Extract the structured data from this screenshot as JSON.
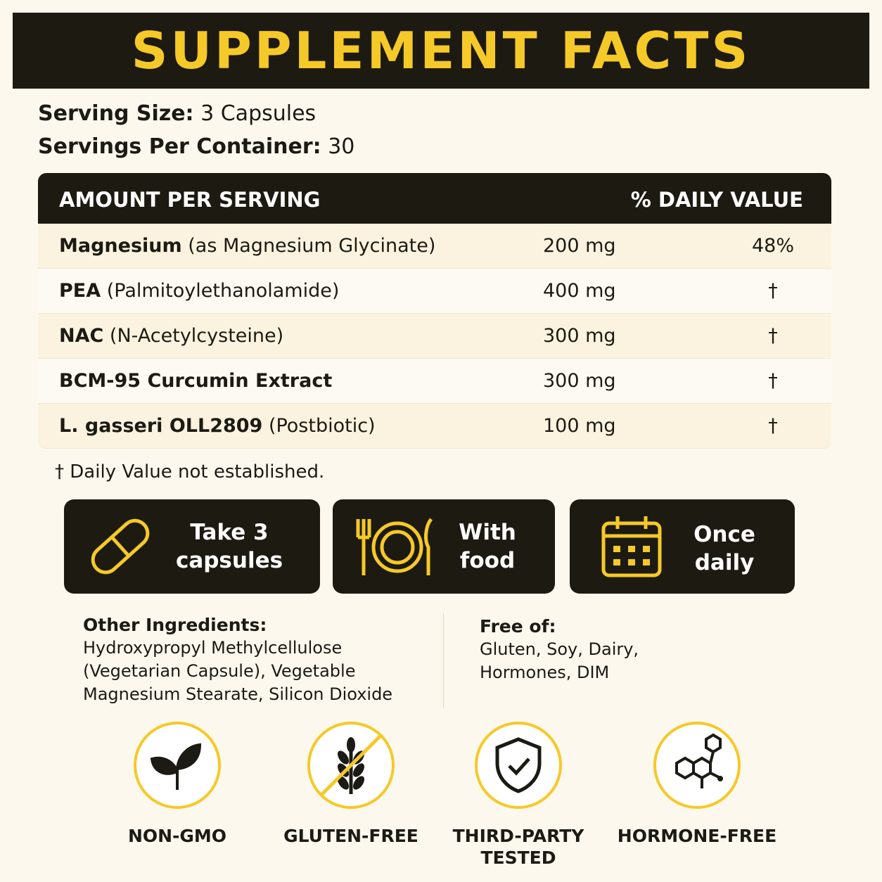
{
  "header": {
    "title": "SUPPLEMENT FACTS"
  },
  "serving": [
    {
      "label": "Serving Size:",
      "value": "3 Capsules"
    },
    {
      "label": "Servings Per Container:",
      "value": "30"
    }
  ],
  "table": {
    "headers": [
      "AMOUNT PER SERVING",
      "% DAILY VALUE"
    ],
    "rows": [
      {
        "name": "Magnesium",
        "note": "(as Magnesium Glycinate)",
        "amount": "200 mg",
        "dv": "48%"
      },
      {
        "name": "PEA",
        "note": "(Palmitoylethanolamide)",
        "amount": "400 mg",
        "dv": "†"
      },
      {
        "name": "NAC",
        "note": "(N-Acetylcysteine)",
        "amount": "300 mg",
        "dv": "†"
      },
      {
        "name": "BCM-95 Curcumin Extract",
        "amount": "300 mg",
        "dv": "†"
      },
      {
        "name": "L. gasseri OLL2809",
        "note": "(Postbiotic)",
        "amount": "100 mg",
        "dv": "†"
      }
    ]
  },
  "footnote": "† Daily Value not established.",
  "directions": [
    {
      "lines": [
        "Take 3",
        "capsules"
      ]
    },
    {
      "lines": [
        "With",
        "food"
      ]
    },
    {
      "lines": [
        "Once",
        "daily"
      ]
    }
  ],
  "other_ingredients": {
    "title": "Other Ingredients:",
    "lines": [
      "Hydroxypropyl Methylcellulose",
      "(Vegetarian Capsule), Vegetable",
      "Magnesium Stearate, Silicon Dioxide"
    ]
  },
  "free_of": {
    "title": "Free of:",
    "lines": [
      "Gluten, Soy, Dairy,",
      "Hormones, DIM"
    ]
  },
  "badges": [
    {
      "lines": [
        "NON-GMO"
      ]
    },
    {
      "lines": [
        "GLUTEN-FREE"
      ]
    },
    {
      "lines": [
        "THIRD-PARTY",
        "TESTED"
      ]
    },
    {
      "lines": [
        "HORMONE-FREE"
      ]
    }
  ]
}
